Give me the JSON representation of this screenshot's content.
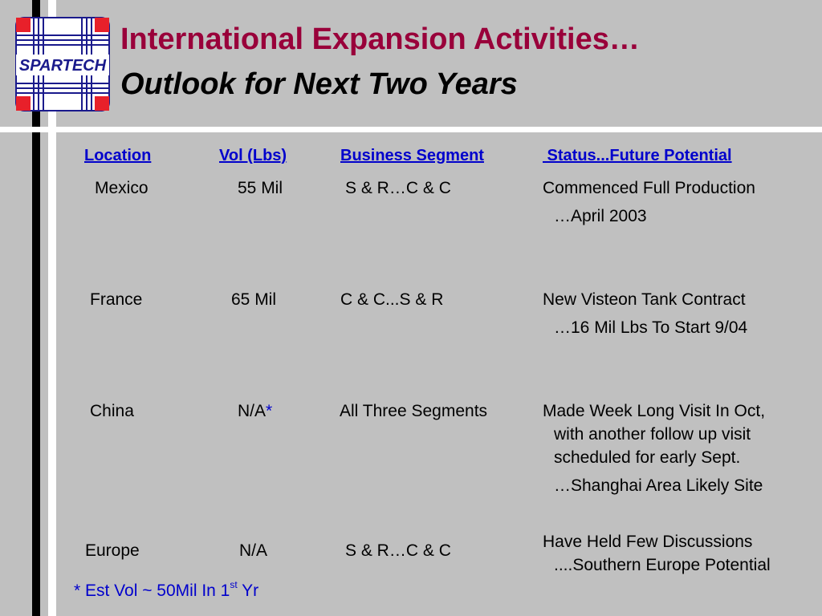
{
  "logo": {
    "text": "SPARTECH"
  },
  "title": {
    "line1": "International Expansion Activities…",
    "line2": "Outlook for Next Two Years"
  },
  "table": {
    "headers": [
      "Location",
      "Vol (Lbs)",
      "Business Segment",
      " Status...Future Potential"
    ],
    "rows": [
      {
        "location": "Mexico",
        "vol": "55 Mil",
        "vol_mark": "",
        "segment": "S & R…C & C",
        "status": [
          "Commenced Full Production"
        ],
        "status_extra": [
          "…April 2003"
        ]
      },
      {
        "location": "France",
        "vol": "65 Mil",
        "vol_mark": "",
        "segment": "C & C...S & R",
        "status": [
          "New Visteon Tank Contract"
        ],
        "status_extra": [
          "…16 Mil Lbs To Start 9/04"
        ]
      },
      {
        "location": "China",
        "vol": "N/A",
        "vol_mark": "*",
        "segment": "All Three Segments",
        "status": [
          "Made Week Long Visit In Oct,",
          "with another follow up visit",
          "scheduled for early Sept."
        ],
        "status_extra": [
          "…Shanghai Area Likely Site"
        ]
      },
      {
        "location": "Europe",
        "vol": "N/A",
        "vol_mark": "",
        "segment": "S & R…C & C",
        "status": [
          "Have Held Few Discussions",
          "....Southern Europe Potential"
        ],
        "status_extra": []
      }
    ]
  },
  "footnote": {
    "text": "* Est Vol ~ 50Mil In 1",
    "sup": "st",
    "tail": "  Yr"
  },
  "colors": {
    "title_red": "#99003a",
    "header_blue": "#0000cc",
    "background": "#c0c0c0"
  }
}
